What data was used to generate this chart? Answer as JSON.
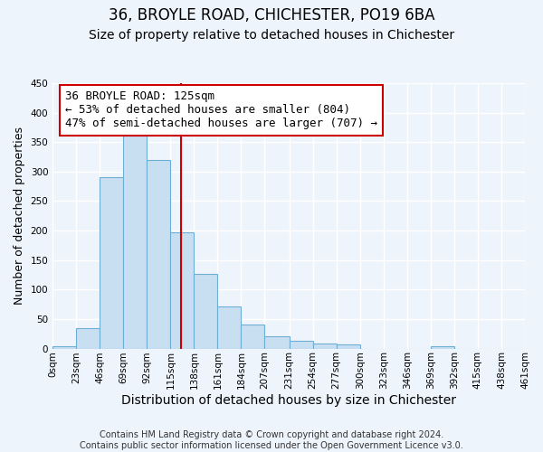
{
  "title": "36, BROYLE ROAD, CHICHESTER, PO19 6BA",
  "subtitle": "Size of property relative to detached houses in Chichester",
  "xlabel": "Distribution of detached houses by size in Chichester",
  "ylabel": "Number of detached properties",
  "bin_edges": [
    0,
    23,
    46,
    69,
    92,
    115,
    138,
    161,
    184,
    207,
    231,
    254,
    277,
    300,
    323,
    346,
    369,
    392,
    415,
    438,
    461
  ],
  "bin_labels": [
    "0sqm",
    "23sqm",
    "46sqm",
    "69sqm",
    "92sqm",
    "115sqm",
    "138sqm",
    "161sqm",
    "184sqm",
    "207sqm",
    "231sqm",
    "254sqm",
    "277sqm",
    "300sqm",
    "323sqm",
    "346sqm",
    "369sqm",
    "392sqm",
    "415sqm",
    "438sqm",
    "461sqm"
  ],
  "counts": [
    4,
    35,
    290,
    365,
    320,
    197,
    127,
    71,
    40,
    20,
    13,
    9,
    7,
    0,
    0,
    0,
    4,
    0,
    0,
    0
  ],
  "bar_color": "#c8dff2",
  "bar_edge_color": "#6faed4",
  "vline_x": 125,
  "vline_color": "#cc0000",
  "annotation_line1": "36 BROYLE ROAD: 125sqm",
  "annotation_line2": "← 53% of detached houses are smaller (804)",
  "annotation_line3": "47% of semi-detached houses are larger (707) →",
  "annotation_box_edgecolor": "#cc0000",
  "annotation_box_facecolor": "#ffffff",
  "ylim": [
    0,
    450
  ],
  "xlim_min": 0,
  "xlim_max": 461,
  "footer_text": "Contains HM Land Registry data © Crown copyright and database right 2024.\nContains public sector information licensed under the Open Government Licence v3.0.",
  "title_fontsize": 12,
  "subtitle_fontsize": 10,
  "xlabel_fontsize": 10,
  "ylabel_fontsize": 9,
  "annotation_fontsize": 9,
  "footer_fontsize": 7,
  "tick_fontsize": 7.5,
  "background_color": "#eef4fb",
  "grid_color": "#ffffff"
}
